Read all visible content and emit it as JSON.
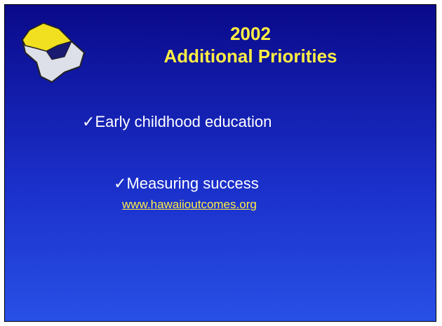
{
  "slide": {
    "title_line1": "2002",
    "title_line2": "Additional Priorities",
    "bullets": [
      "Early childhood education",
      "Measuring success"
    ],
    "link": "www.hawaiioutcomes.org"
  }
}
